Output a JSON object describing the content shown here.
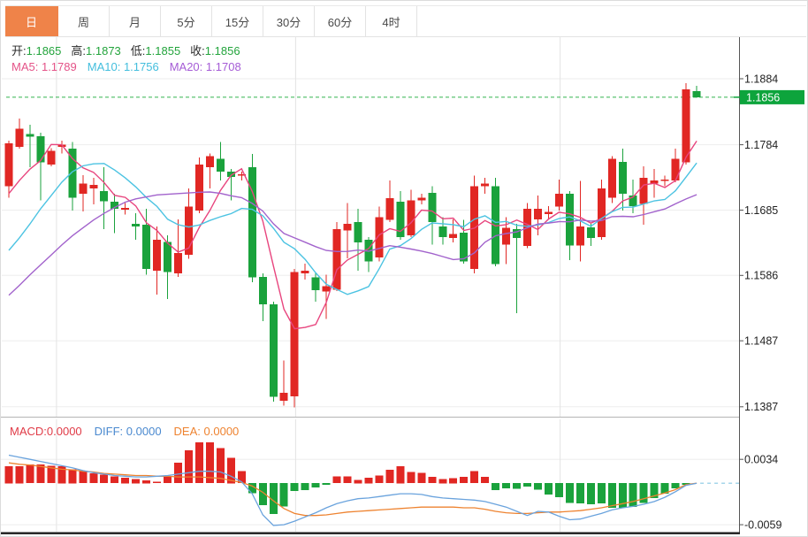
{
  "toolbar": {
    "tabs": [
      {
        "label": "日",
        "active": true
      },
      {
        "label": "周",
        "active": false
      },
      {
        "label": "月",
        "active": false
      },
      {
        "label": "5分",
        "active": false
      },
      {
        "label": "15分",
        "active": false
      },
      {
        "label": "30分",
        "active": false
      },
      {
        "label": "60分",
        "active": false
      },
      {
        "label": "4时",
        "active": false
      }
    ]
  },
  "info": {
    "open_label": "开:",
    "open": "1.1865",
    "high_label": "高:",
    "high": "1.1873",
    "low_label": "低:",
    "low": "1.1855",
    "close_label": "收:",
    "close": "1.1856",
    "ma5_label": "MA5:",
    "ma5": "1.1789",
    "ma10_label": "MA10:",
    "ma10": "1.1756",
    "ma20_label": "MA20:",
    "ma20": "1.1708"
  },
  "macd_info": {
    "macd_label": "MACD:",
    "macd": "0.0000",
    "diff_label": "DIFF:",
    "diff": "0.0000",
    "dea_label": "DEA:",
    "dea": "0.0000"
  },
  "colors": {
    "accent_orange": "#ef8349",
    "up_red": "#e12723",
    "down_green": "#1aa23c",
    "ma5_pink": "#e8457e",
    "ma10_cyan": "#4cc3e2",
    "ma20_purple": "#a263cc",
    "diff_blue": "#6aa3dd",
    "dea_orange": "#ee8330",
    "badge_green": "#0da43c",
    "dashed_green": "#35b34f",
    "dashed_teal": "#a5d6ea",
    "grid": "#ededed",
    "vgrid": "#e4e4e4",
    "axis_line": "#555555",
    "axis_text": "#222222",
    "bottom_bar": "#1d1d1d",
    "separator": "#b5b5b5"
  },
  "chart_data": {
    "type": "candlestick+macd",
    "title": "",
    "legend": [
      "MA5",
      "MA10",
      "MA20",
      "MACD",
      "DIFF",
      "DEA"
    ],
    "price_domain": [
      1.1372,
      1.1947
    ],
    "macd_domain": [
      -0.0069,
      0.0091
    ],
    "price_axis_labels": [
      {
        "text": "1.1884",
        "value": 1.1884
      },
      {
        "text": "1.1784",
        "value": 1.1784
      },
      {
        "text": "1.1685",
        "value": 1.1685
      },
      {
        "text": "1.1586",
        "value": 1.1586
      },
      {
        "text": "1.1487",
        "value": 1.1487
      },
      {
        "text": "1.1387",
        "value": 1.1387
      }
    ],
    "macd_axis_labels": [
      {
        "text": "0.0034",
        "value": 0.0034
      },
      {
        "text": "-0.0059",
        "value": -0.0059
      }
    ],
    "current_price": {
      "text": "1.1856",
      "value": 1.1856
    },
    "time_gridline_indices": [
      4.5,
      27.1,
      52.1
    ],
    "candles_ohlc": [
      [
        1.1721,
        1.179,
        1.1704,
        1.1786
      ],
      [
        1.1781,
        1.1824,
        1.1778,
        1.1808
      ],
      [
        1.18,
        1.1814,
        1.175,
        1.1796
      ],
      [
        1.1797,
        1.1802,
        1.17,
        1.1757
      ],
      [
        1.1754,
        1.1779,
        1.1751,
        1.1775
      ],
      [
        1.1781,
        1.179,
        1.1771,
        1.1784
      ],
      [
        1.1778,
        1.1788,
        1.1684,
        1.1704
      ],
      [
        1.171,
        1.1738,
        1.1683,
        1.1725
      ],
      [
        1.1718,
        1.1734,
        1.1694,
        1.1723
      ],
      [
        1.1714,
        1.175,
        1.1656,
        1.1698
      ],
      [
        1.1698,
        1.171,
        1.165,
        1.1687
      ],
      [
        1.1686,
        1.1696,
        1.1678,
        1.1688
      ],
      [
        1.1664,
        1.168,
        1.164,
        1.166
      ],
      [
        1.1663,
        1.1687,
        1.1587,
        1.1596
      ],
      [
        1.1593,
        1.166,
        1.1557,
        1.164
      ],
      [
        1.1637,
        1.1647,
        1.155,
        1.1591
      ],
      [
        1.1589,
        1.1671,
        1.1584,
        1.162
      ],
      [
        1.1617,
        1.1718,
        1.1611,
        1.169
      ],
      [
        1.1684,
        1.1765,
        1.168,
        1.1754
      ],
      [
        1.175,
        1.1771,
        1.1718,
        1.1767
      ],
      [
        1.1763,
        1.1788,
        1.173,
        1.1743
      ],
      [
        1.1743,
        1.1747,
        1.17,
        1.1735
      ],
      [
        1.1737,
        1.1743,
        1.173,
        1.1739
      ],
      [
        1.175,
        1.177,
        1.1576,
        1.1583
      ],
      [
        1.1584,
        1.1589,
        1.1517,
        1.1542
      ],
      [
        1.1542,
        1.1546,
        1.1395,
        1.1402
      ],
      [
        1.1396,
        1.1457,
        1.1389,
        1.1408
      ],
      [
        1.1403,
        1.1596,
        1.1386,
        1.1591
      ],
      [
        1.1589,
        1.1604,
        1.158,
        1.1593
      ],
      [
        1.1583,
        1.1591,
        1.1546,
        1.1564
      ],
      [
        1.1562,
        1.1587,
        1.152,
        1.157
      ],
      [
        1.1564,
        1.1667,
        1.1562,
        1.1656
      ],
      [
        1.1654,
        1.1696,
        1.1612,
        1.1664
      ],
      [
        1.1667,
        1.1687,
        1.1593,
        1.1636
      ],
      [
        1.164,
        1.1644,
        1.1591,
        1.1607
      ],
      [
        1.1613,
        1.169,
        1.1607,
        1.1674
      ],
      [
        1.167,
        1.173,
        1.1667,
        1.1703
      ],
      [
        1.1698,
        1.1714,
        1.164,
        1.1644
      ],
      [
        1.1647,
        1.1716,
        1.1644,
        1.17
      ],
      [
        1.17,
        1.171,
        1.1694,
        1.1704
      ],
      [
        1.1711,
        1.1721,
        1.1633,
        1.1667
      ],
      [
        1.166,
        1.1674,
        1.1633,
        1.1644
      ],
      [
        1.1643,
        1.1671,
        1.1636,
        1.1649
      ],
      [
        1.1651,
        1.167,
        1.1604,
        1.1607
      ],
      [
        1.1596,
        1.1737,
        1.1589,
        1.1721
      ],
      [
        1.1721,
        1.1734,
        1.171,
        1.1725
      ],
      [
        1.1721,
        1.1734,
        1.16,
        1.1603
      ],
      [
        1.1633,
        1.1674,
        1.1603,
        1.1658
      ],
      [
        1.1656,
        1.1664,
        1.1529,
        1.1643
      ],
      [
        1.1631,
        1.1696,
        1.1627,
        1.1687
      ],
      [
        1.1671,
        1.1707,
        1.1647,
        1.1687
      ],
      [
        1.1679,
        1.1691,
        1.167,
        1.1682
      ],
      [
        1.169,
        1.1731,
        1.1684,
        1.171
      ],
      [
        1.171,
        1.1714,
        1.1609,
        1.1631
      ],
      [
        1.1631,
        1.1729,
        1.1607,
        1.166
      ],
      [
        1.1659,
        1.1664,
        1.1631,
        1.1643
      ],
      [
        1.1644,
        1.1731,
        1.164,
        1.1718
      ],
      [
        1.1704,
        1.1767,
        1.1696,
        1.1763
      ],
      [
        1.1758,
        1.1778,
        1.1684,
        1.171
      ],
      [
        1.1707,
        1.1731,
        1.168,
        1.1691
      ],
      [
        1.1694,
        1.1751,
        1.1663,
        1.1734
      ],
      [
        1.1725,
        1.1747,
        1.1704,
        1.173
      ],
      [
        1.1729,
        1.1737,
        1.1721,
        1.1731
      ],
      [
        1.173,
        1.1778,
        1.1727,
        1.1763
      ],
      [
        1.1757,
        1.1877,
        1.1754,
        1.1868
      ],
      [
        1.1865,
        1.1873,
        1.1855,
        1.1856
      ]
    ],
    "ma5_seed": [
      1.171,
      1.173,
      1.1747,
      1.176
    ],
    "ma10_seed": [
      1.1624,
      1.1643,
      1.1664,
      1.1687,
      1.1707,
      1.1727,
      1.1743,
      1.1752,
      1.1755
    ],
    "ma20_seed": [
      1.1556,
      1.1571,
      1.1587,
      1.1602,
      1.1617,
      1.1632,
      1.1646,
      1.1658,
      1.167,
      1.168,
      1.1689,
      1.1697,
      1.1702,
      1.1705,
      1.1708,
      1.1709,
      1.171,
      1.1711,
      1.1712
    ],
    "macd_hist": [
      0.0024,
      0.0024,
      0.0027,
      0.0027,
      0.0025,
      0.0024,
      0.002,
      0.0018,
      0.0014,
      0.0012,
      0.001,
      0.0008,
      0.0006,
      0.0004,
      0.0002,
      0.001,
      0.0029,
      0.0047,
      0.0058,
      0.0058,
      0.005,
      0.0036,
      0.0017,
      -0.0014,
      -0.0031,
      -0.0044,
      -0.0033,
      -0.0011,
      -0.001,
      -0.0006,
      -0.0002,
      0.001,
      0.001,
      0.0005,
      0.0008,
      0.0011,
      0.0019,
      0.0024,
      0.0016,
      0.0015,
      0.0009,
      0.0006,
      0.0007,
      0.0009,
      0.0017,
      0.0009,
      -0.001,
      -0.0007,
      -0.0008,
      -0.0005,
      -0.0009,
      -0.0016,
      -0.002,
      -0.0028,
      -0.0029,
      -0.003,
      -0.0029,
      -0.0035,
      -0.0035,
      -0.0034,
      -0.0028,
      -0.0021,
      -0.0015,
      -0.0007,
      -0.0002,
      0.0
    ],
    "diff_line": [
      0.004,
      0.0037,
      0.0034,
      0.0031,
      0.0028,
      0.0025,
      0.0022,
      0.0018,
      0.0015,
      0.0013,
      0.0011,
      0.001,
      0.0009,
      0.0009,
      0.001,
      0.0011,
      0.0013,
      0.0015,
      0.0017,
      0.0017,
      0.0016,
      0.001,
      0.0002,
      -0.0015,
      -0.0045,
      -0.006,
      -0.0059,
      -0.0054,
      -0.0048,
      -0.0042,
      -0.0035,
      -0.0029,
      -0.0025,
      -0.0022,
      -0.0021,
      -0.0019,
      -0.0017,
      -0.0015,
      -0.0015,
      -0.0016,
      -0.0019,
      -0.0021,
      -0.0022,
      -0.0023,
      -0.0024,
      -0.0026,
      -0.003,
      -0.0034,
      -0.004,
      -0.0046,
      -0.004,
      -0.0041,
      -0.0047,
      -0.0052,
      -0.0051,
      -0.0047,
      -0.0043,
      -0.0038,
      -0.0035,
      -0.0033,
      -0.003,
      -0.0026,
      -0.002,
      -0.0012,
      -0.0003,
      0.0
    ],
    "dea_line": [
      0.0029,
      0.0027,
      0.0026,
      0.0024,
      0.0022,
      0.002,
      0.0019,
      0.0017,
      0.0016,
      0.0014,
      0.0013,
      0.0012,
      0.0011,
      0.0011,
      0.001,
      0.001,
      0.0009,
      0.0009,
      0.0009,
      0.0008,
      0.0007,
      0.0004,
      0.0001,
      -0.0004,
      -0.0013,
      -0.0025,
      -0.0036,
      -0.0043,
      -0.0046,
      -0.0046,
      -0.0045,
      -0.0043,
      -0.0041,
      -0.004,
      -0.0039,
      -0.0038,
      -0.0037,
      -0.0036,
      -0.0035,
      -0.0034,
      -0.0034,
      -0.0034,
      -0.0034,
      -0.0035,
      -0.0035,
      -0.0037,
      -0.004,
      -0.0042,
      -0.0043,
      -0.0043,
      -0.0042,
      -0.0041,
      -0.0041,
      -0.004,
      -0.0039,
      -0.0037,
      -0.0035,
      -0.0032,
      -0.0029,
      -0.0026,
      -0.0022,
      -0.0018,
      -0.0014,
      -0.0009,
      -0.0002,
      0.0
    ]
  }
}
